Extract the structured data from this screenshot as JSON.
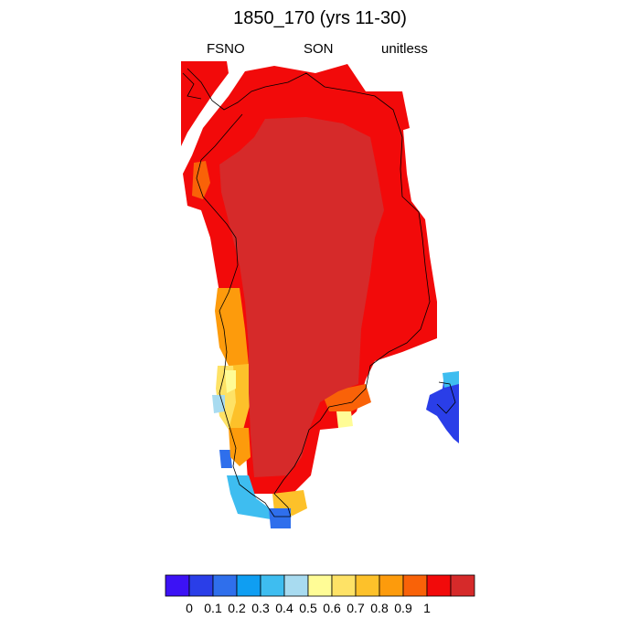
{
  "title": "1850_170 (yrs 11-30)",
  "subtitles": {
    "left": "FSNO",
    "center": "SON",
    "right": "unitless"
  },
  "colorbar": {
    "colors": [
      "#3c12f5",
      "#2a3ee8",
      "#2f6fec",
      "#0f9ef2",
      "#3ebdf0",
      "#a8dbf0",
      "#fffc96",
      "#fee266",
      "#fdc12a",
      "#fd9b0c",
      "#f96208",
      "#f20a0a",
      "#d62a2a"
    ],
    "tick_labels": [
      "0",
      "0.1",
      "0.2",
      "0.3",
      "0.4",
      "0.5",
      "0.6",
      "0.7",
      "0.8",
      "0.9",
      "1"
    ]
  },
  "map_colors": {
    "interior": "#d62a2a",
    "margin": "#f20a0a",
    "orange_red": "#f96208",
    "orange": "#fd9b0c",
    "light_orange": "#fdc12a",
    "yellow": "#fee266",
    "pale_yellow": "#fffc96",
    "pale_blue": "#a8dbf0",
    "light_blue": "#3ebdf0",
    "mid_blue": "#2f6fec",
    "blue": "#2a3ee8"
  }
}
